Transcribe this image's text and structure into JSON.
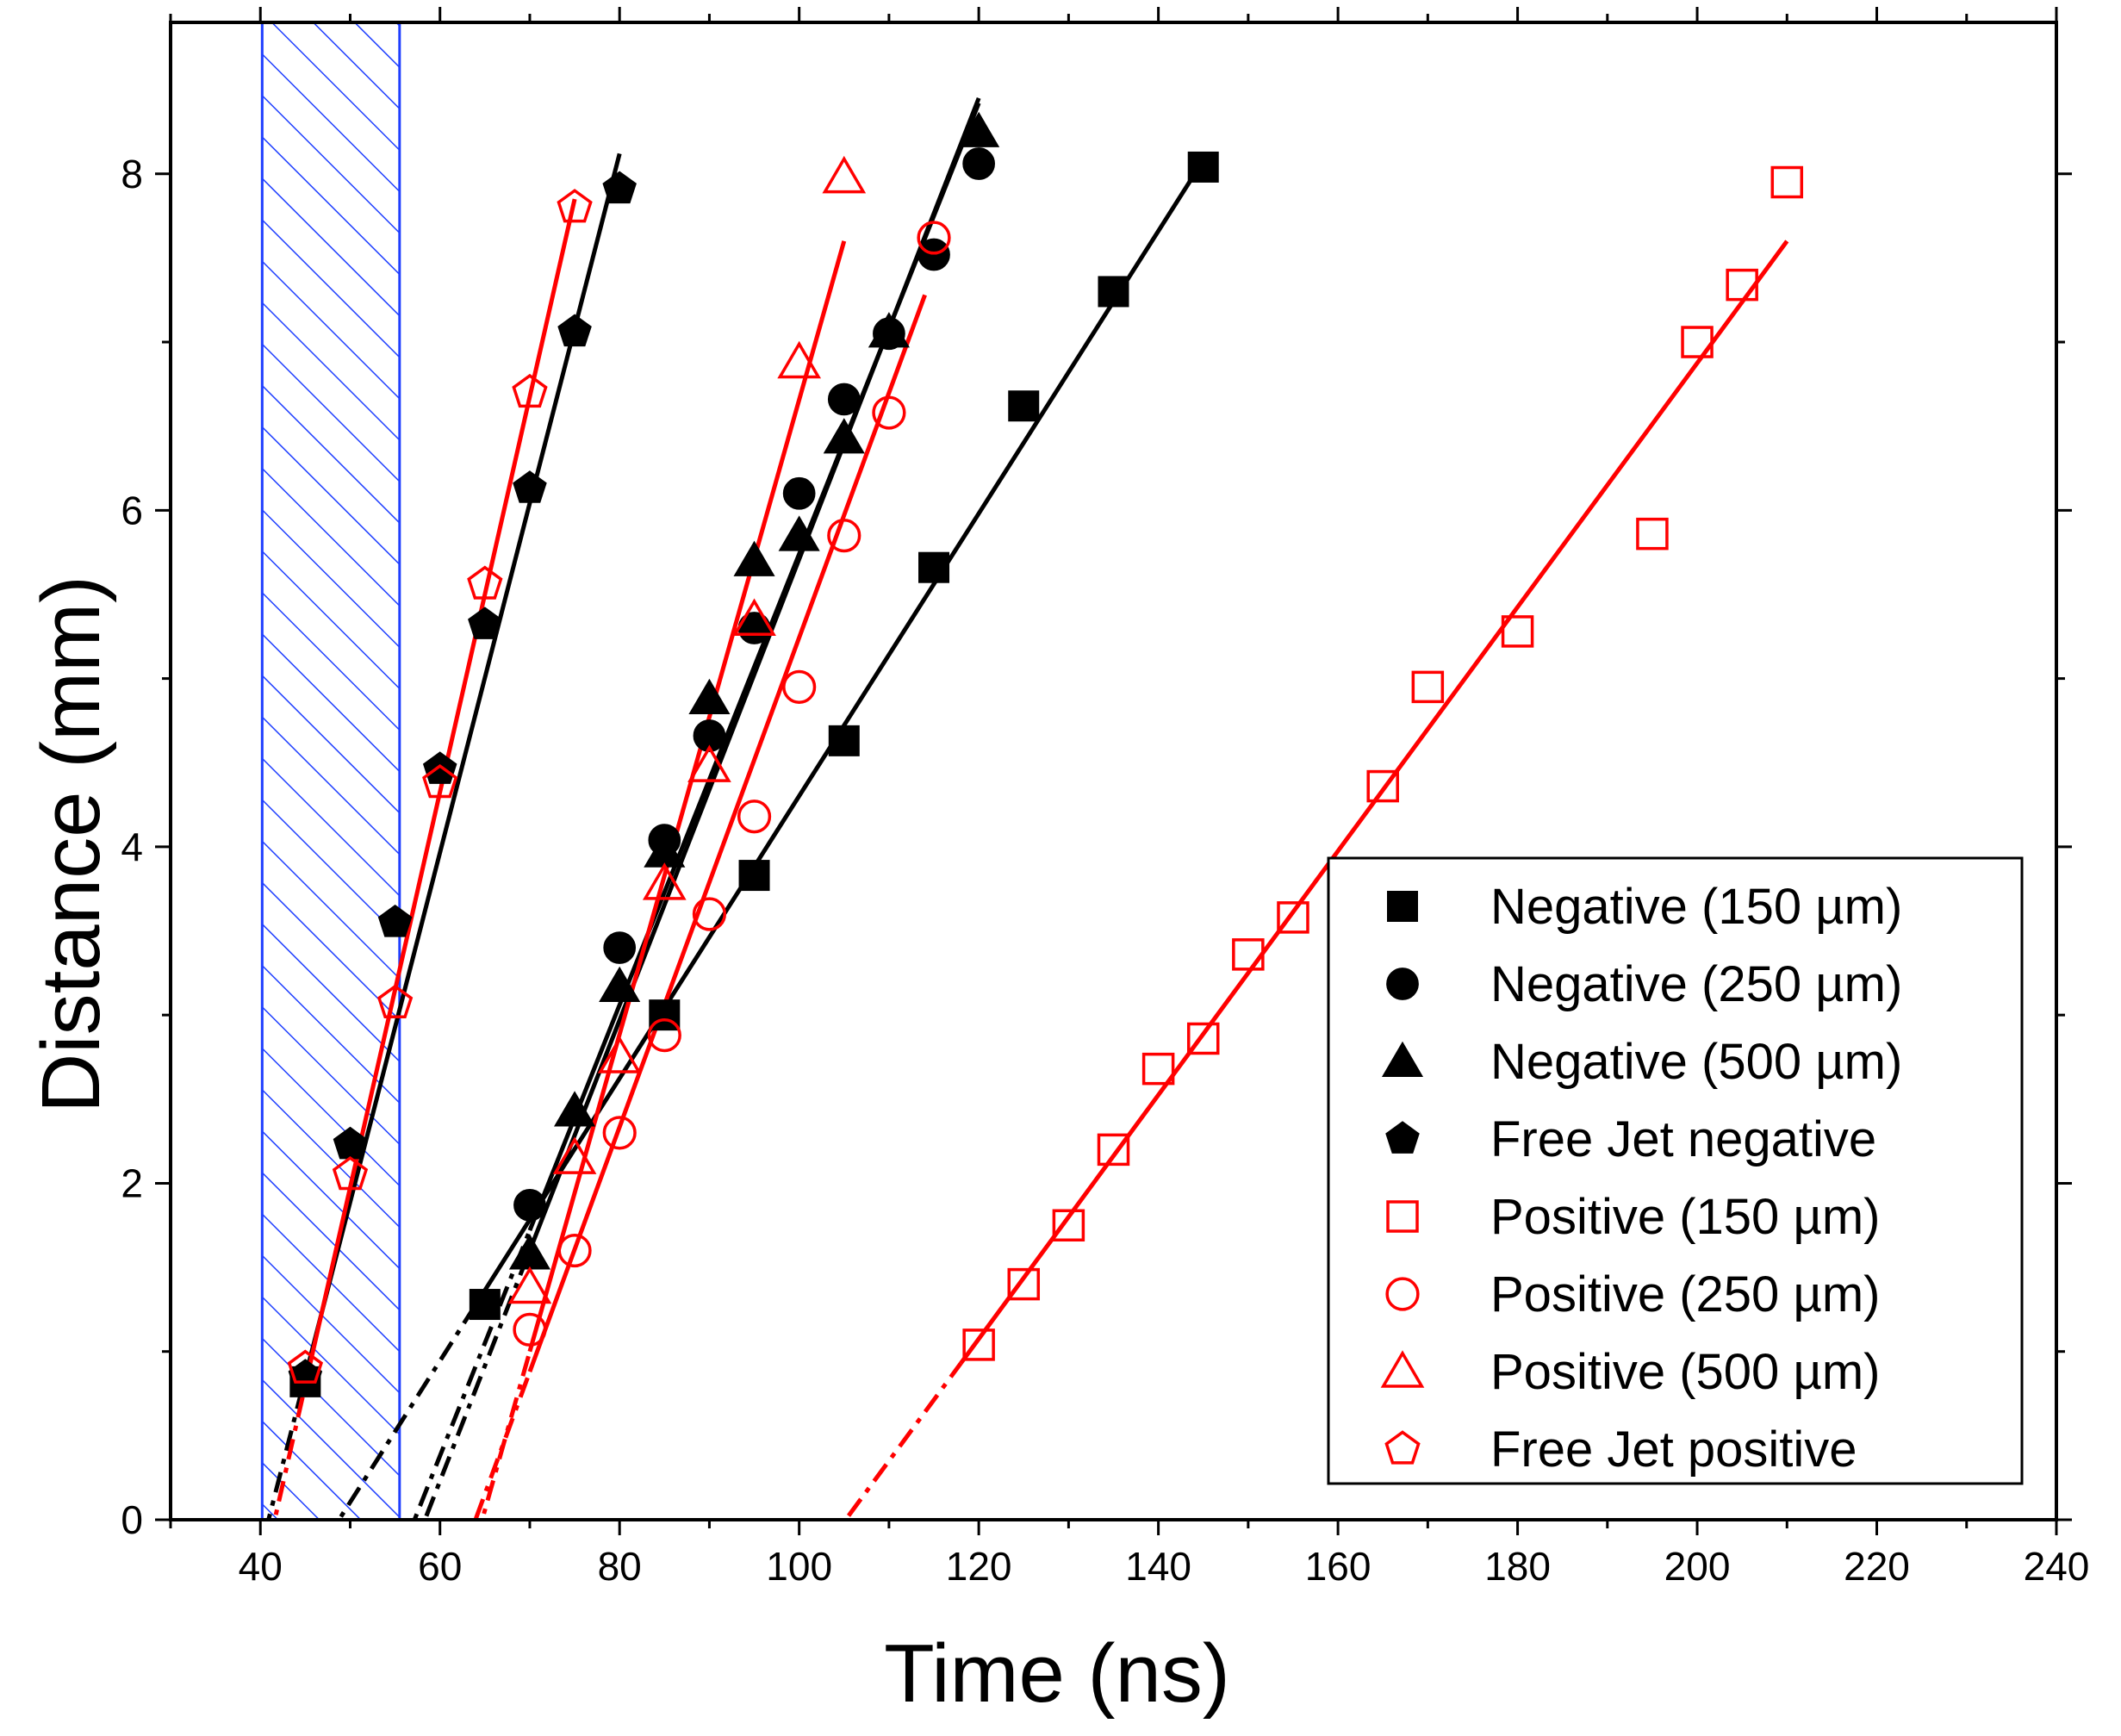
{
  "chart_data": {
    "type": "scatter",
    "title": "",
    "xlabel": "Time (ns)",
    "ylabel": "Distance (mm)",
    "xlim": [
      30,
      240
    ],
    "ylim": [
      0,
      8.9
    ],
    "xticks": [
      40,
      60,
      80,
      100,
      120,
      140,
      160,
      180,
      200,
      220,
      240
    ],
    "yticks": [
      0,
      2,
      4,
      6,
      8
    ],
    "grid": false,
    "legend_position": "bottom-right",
    "shaded_region": {
      "x": [
        40.2,
        55.5
      ],
      "fill": "hatch",
      "color": "#1f3fff"
    },
    "series": [
      {
        "name": "Negative (150 µm)",
        "marker": "square",
        "filled": true,
        "color": "#000000",
        "x": [
          45,
          65,
          85,
          95,
          105,
          115,
          125,
          135,
          145
        ],
        "y": [
          0.82,
          1.28,
          3.0,
          3.83,
          4.63,
          5.66,
          6.62,
          7.3,
          8.04
        ],
        "fit": {
          "x": [
            64,
            145
          ],
          "y": [
            1.28,
            8.08
          ],
          "extrap": [
            39.5,
            64
          ]
        }
      },
      {
        "name": "Negative (250 µm)",
        "marker": "circle",
        "filled": true,
        "color": "#000000",
        "x": [
          70,
          80,
          85,
          90,
          95,
          100,
          105,
          110,
          115,
          120
        ],
        "y": [
          1.87,
          3.4,
          4.04,
          4.66,
          5.3,
          6.1,
          6.66,
          7.05,
          7.52,
          8.06
        ],
        "fit": {
          "x": [
            70,
            120
          ],
          "y": [
            1.72,
            8.42
          ],
          "extrap": [
            56,
            70
          ]
        }
      },
      {
        "name": "Negative (500 µm)",
        "marker": "triangle",
        "filled": true,
        "color": "#000000",
        "x": [
          70,
          75,
          80,
          85,
          90,
          95,
          100,
          105,
          110,
          120
        ],
        "y": [
          1.58,
          2.43,
          3.17,
          3.97,
          4.88,
          5.7,
          5.85,
          6.43,
          7.06,
          8.25
        ],
        "fit": {
          "x": [
            70,
            120
          ],
          "y": [
            1.6,
            8.45
          ],
          "extrap": [
            55,
            70
          ]
        }
      },
      {
        "name": "Free Jet negative",
        "marker": "pentagon",
        "filled": true,
        "color": "#000000",
        "x": [
          45,
          50,
          55,
          60,
          65,
          70,
          75,
          80
        ],
        "y": [
          0.85,
          2.23,
          3.55,
          4.46,
          5.32,
          6.13,
          7.06,
          7.91
        ],
        "fit": {
          "x": [
            45,
            80
          ],
          "y": [
            0.85,
            8.12
          ],
          "extrap": [
            40.5,
            45
          ]
        }
      },
      {
        "name": "Positive (150 µm)",
        "marker": "square",
        "filled": false,
        "color": "#ff0000",
        "x": [
          120,
          125,
          130,
          135,
          140,
          145,
          150,
          155,
          165,
          170,
          180,
          195,
          200,
          205,
          210
        ],
        "y": [
          1.04,
          1.4,
          1.75,
          2.2,
          2.68,
          2.86,
          3.36,
          3.58,
          4.36,
          4.95,
          5.28,
          5.86,
          7.0,
          7.34,
          7.95
        ],
        "fit": {
          "x": [
            118,
            210
          ],
          "y": [
            0.93,
            7.6
          ],
          "extrap": [
            105.5,
            118
          ]
        }
      },
      {
        "name": "Positive (250 µm)",
        "marker": "circle",
        "filled": false,
        "color": "#ff0000",
        "x": [
          70,
          75,
          80,
          85,
          90,
          95,
          100,
          105,
          110,
          115
        ],
        "y": [
          1.13,
          1.6,
          2.3,
          2.88,
          3.6,
          4.18,
          4.95,
          5.85,
          6.58,
          7.62
        ],
        "fit": {
          "x": [
            70,
            114
          ],
          "y": [
            0.88,
            7.28
          ],
          "extrap": [
            64,
            70
          ]
        }
      },
      {
        "name": "Positive (500 µm)",
        "marker": "triangle",
        "filled": false,
        "color": "#ff0000",
        "x": [
          70,
          75,
          80,
          85,
          90,
          95,
          100,
          105
        ],
        "y": [
          1.38,
          2.15,
          2.75,
          3.78,
          4.48,
          5.35,
          6.88,
          7.98
        ],
        "fit": {
          "x": [
            70,
            105
          ],
          "y": [
            1.0,
            7.6
          ],
          "extrap": [
            64,
            70
          ]
        }
      },
      {
        "name": "Free Jet positive",
        "marker": "pentagon",
        "filled": false,
        "color": "#ff0000",
        "x": [
          45,
          50,
          55,
          60,
          65,
          70,
          75
        ],
        "y": [
          0.9,
          2.05,
          3.07,
          4.38,
          5.56,
          6.7,
          7.8
        ],
        "fit": {
          "x": [
            45,
            75
          ],
          "y": [
            0.8,
            7.85
          ],
          "extrap": [
            41,
            45
          ]
        }
      }
    ]
  }
}
